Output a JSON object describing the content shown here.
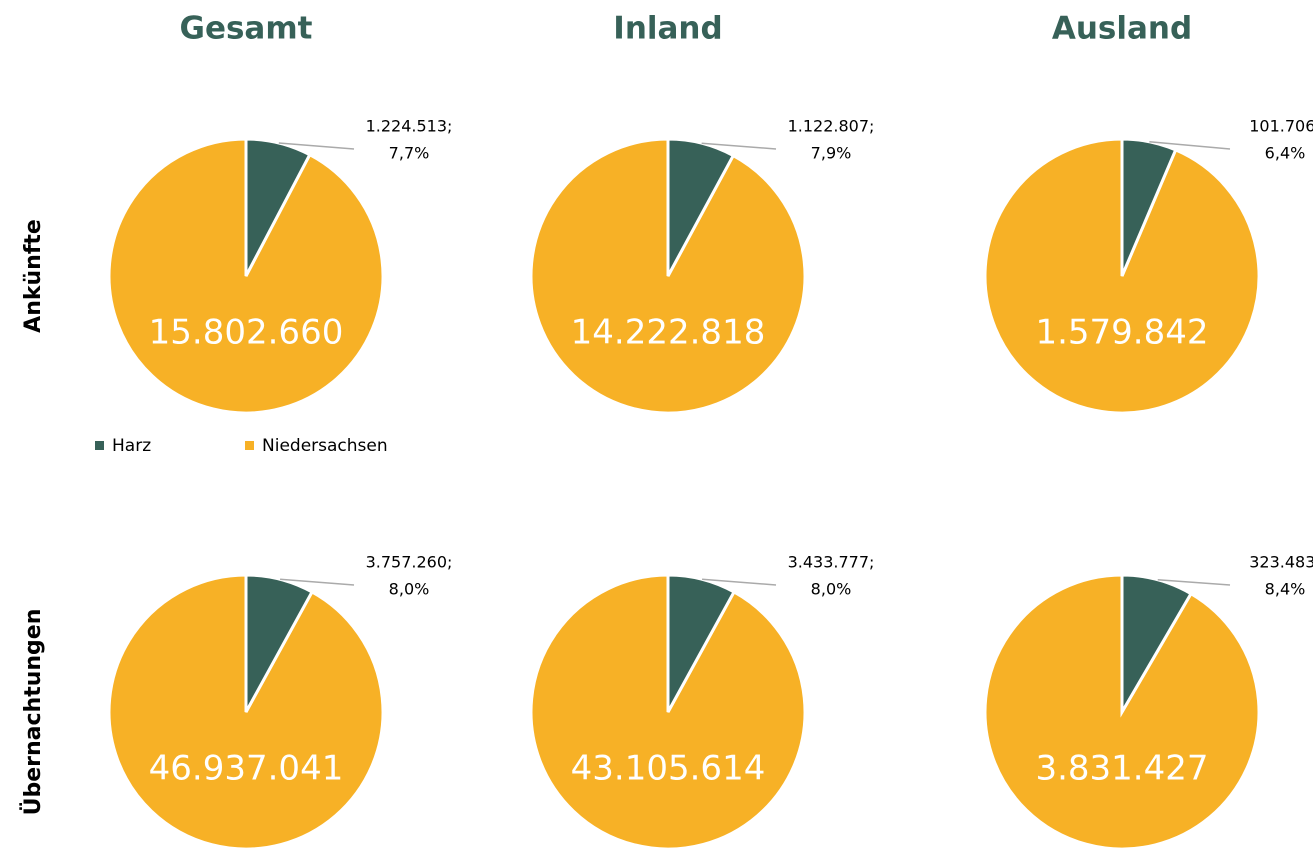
{
  "columns": [
    "Gesamt",
    "Inland",
    "Ausland"
  ],
  "rows": [
    "Ankünfte",
    "Übernachtungen"
  ],
  "legend": [
    {
      "name": "Harz",
      "color": "#376158"
    },
    {
      "name": "Niedersachsen",
      "color": "#f7b126"
    }
  ],
  "chart_data": [
    {
      "type": "pie",
      "values": [
        1224513,
        15802660
      ],
      "value_labels": [
        "1.224.513;",
        "15.802.660"
      ],
      "percent": 7.7,
      "percent_label": "7,7%"
    },
    {
      "type": "pie",
      "values": [
        1122807,
        14222818
      ],
      "value_labels": [
        "1.122.807;",
        "14.222.818"
      ],
      "percent": 7.9,
      "percent_label": "7,9%"
    },
    {
      "type": "pie",
      "values": [
        101706,
        1579842
      ],
      "value_labels": [
        "101.706;",
        "1.579.842"
      ],
      "percent": 6.4,
      "percent_label": "6,4%"
    },
    {
      "type": "pie",
      "values": [
        3757260,
        46937041
      ],
      "value_labels": [
        "3.757.260;",
        "46.937.041"
      ],
      "percent": 8.0,
      "percent_label": "8,0%"
    },
    {
      "type": "pie",
      "values": [
        3433777,
        43105614
      ],
      "value_labels": [
        "3.433.777;",
        "43.105.614"
      ],
      "percent": 8.0,
      "percent_label": "8,0%"
    },
    {
      "type": "pie",
      "values": [
        323483,
        3831427
      ],
      "value_labels": [
        "323.483;",
        "3.831.427"
      ],
      "percent": 8.4,
      "percent_label": "8,4%"
    }
  ]
}
